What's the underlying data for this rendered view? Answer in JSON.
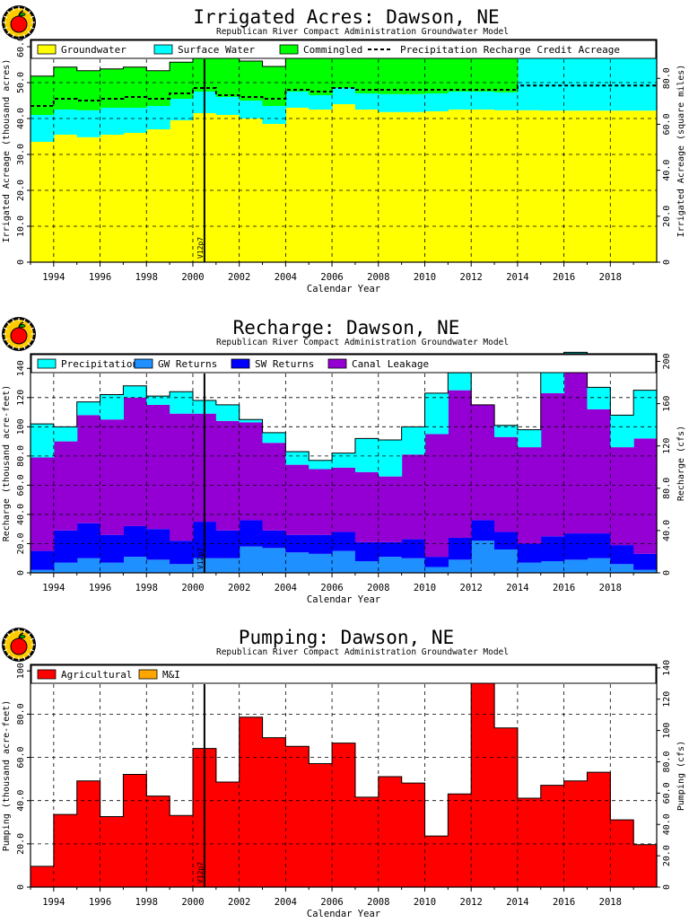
{
  "colors": {
    "groundwater": "#ffff00",
    "surface_water": "#00ffff",
    "commingled": "#00ff00",
    "precipitation": "#00ffff",
    "gw_returns": "#1e90ff",
    "sw_returns": "#0000ff",
    "canal_leakage": "#9400d3",
    "agricultural": "#ff0000",
    "mi": "#ffa500",
    "logo_ring": "#000000",
    "logo_apple": "#ff0000",
    "logo_bg": "#ffcc00"
  },
  "icons": {
    "logo": "apple-logo-icon"
  },
  "chart_data": [
    {
      "type": "area",
      "title": "Irrigated Acres: Dawson, NE",
      "subtitle": "Republican River Compact Administration Groundwater Model",
      "xlabel": "Calendar Year",
      "ylabel": "Irrigated Acreage (thousand acres)",
      "ylabel_right": "Irrigated Acreage (square miles)",
      "xlim": [
        1993,
        2020
      ],
      "ylim": [
        0,
        62
      ],
      "ylim_right": [
        0,
        96.9
      ],
      "yticks": [
        0,
        10,
        20,
        30,
        40,
        50,
        60
      ],
      "ytick_labels": [
        "0",
        "10.0",
        "20.0",
        "30.0",
        "40.0",
        "50.0",
        "60.0"
      ],
      "yticks_right": [
        0,
        20,
        40,
        60,
        80
      ],
      "ytick_labels_right": [
        "0",
        "20.0",
        "40.0",
        "60.0",
        "80.0"
      ],
      "xticks": [
        1994,
        1996,
        1998,
        2000,
        2002,
        2004,
        2006,
        2008,
        2010,
        2012,
        2014,
        2016,
        2018
      ],
      "grid": true,
      "legend_position": "top",
      "vline": {
        "x": 2000.5,
        "label": "V12p7"
      },
      "years": [
        1993,
        1994,
        1995,
        1996,
        1997,
        1998,
        1999,
        2000,
        2001,
        2002,
        2003,
        2004,
        2005,
        2006,
        2007,
        2008,
        2009,
        2010,
        2011,
        2012,
        2013,
        2014,
        2015,
        2016,
        2017,
        2018,
        2019
      ],
      "series": [
        {
          "name": "Groundwater",
          "color_key": "groundwater",
          "values": [
            33.5,
            35.5,
            34.8,
            35.5,
            36.0,
            37.0,
            39.5,
            41.5,
            41.0,
            40.0,
            38.5,
            43.0,
            42.5,
            44.0,
            42.5,
            41.8,
            41.8,
            42.0,
            42.5,
            42.5,
            42.3,
            42.3,
            42.2,
            42.2,
            42.2,
            42.2,
            42.2
          ]
        },
        {
          "name": "Surface Water",
          "color_key": "surface_water",
          "values": [
            7.5,
            7.0,
            7.5,
            7.5,
            7.0,
            6.5,
            6.0,
            6.0,
            5.0,
            5.0,
            5.0,
            4.5,
            4.0,
            4.5,
            4.5,
            5.0,
            5.0,
            5.0,
            5.0,
            5.0,
            5.0,
            16.5,
            16.6,
            16.6,
            16.6,
            16.6,
            16.6
          ]
        },
        {
          "name": "Commingled",
          "color_key": "commingled",
          "values": [
            10.8,
            11.8,
            11.0,
            10.8,
            11.3,
            9.8,
            10.2,
            10.5,
            11.5,
            11.0,
            11.0,
            12.5,
            13.0,
            12.5,
            12.8,
            12.9,
            13.2,
            13.0,
            12.5,
            12.5,
            12.7,
            0,
            0,
            0,
            0,
            0,
            0
          ]
        }
      ],
      "recharge_credit": {
        "name": "Precipitation Recharge Credit Acreage",
        "values": [
          43.5,
          45.5,
          45.0,
          45.5,
          46.0,
          45.5,
          47.0,
          48.5,
          46.5,
          46.0,
          45.5,
          48.0,
          47.5,
          48.5,
          48.0,
          48.0,
          48.0,
          48.0,
          48.0,
          48.0,
          48.0,
          49.2,
          49.2,
          49.2,
          49.2,
          49.2,
          49.2
        ]
      }
    },
    {
      "type": "area",
      "title": "Recharge: Dawson, NE",
      "subtitle": "Republican River Compact Administration Groundwater Model",
      "xlabel": "Calendar Year",
      "ylabel": "Recharge (thousand acre-feet)",
      "ylabel_right": "Recharge (cfs)",
      "xlim": [
        1993,
        2020
      ],
      "ylim": [
        0,
        150
      ],
      "ylim_right": [
        0,
        207.2
      ],
      "yticks": [
        0,
        20,
        40,
        60,
        80,
        100,
        120,
        140
      ],
      "ytick_labels": [
        "0",
        "20.0",
        "40.0",
        "60.0",
        "80.0",
        "100",
        "120",
        "140"
      ],
      "yticks_right": [
        0,
        40,
        80,
        120,
        160,
        200
      ],
      "ytick_labels_right": [
        "0",
        "40.0",
        "80.0",
        "120",
        "160",
        "200"
      ],
      "xticks": [
        1994,
        1996,
        1998,
        2000,
        2002,
        2004,
        2006,
        2008,
        2010,
        2012,
        2014,
        2016,
        2018
      ],
      "grid": true,
      "legend_position": "top",
      "vline": {
        "x": 2000.5,
        "label": "V12p7"
      },
      "years": [
        1993,
        1994,
        1995,
        1996,
        1997,
        1998,
        1999,
        2000,
        2001,
        2002,
        2003,
        2004,
        2005,
        2006,
        2007,
        2008,
        2009,
        2010,
        2011,
        2012,
        2013,
        2014,
        2015,
        2016,
        2017,
        2018,
        2019
      ],
      "series": [
        {
          "name": "GW Returns",
          "color_key": "gw_returns",
          "values": [
            2,
            7,
            10,
            7,
            11,
            9,
            6,
            10,
            10,
            18,
            17,
            14,
            13,
            15,
            8,
            11,
            10,
            4,
            9,
            22,
            16,
            7,
            8,
            9,
            10,
            6,
            2
          ]
        },
        {
          "name": "SW Returns",
          "color_key": "sw_returns",
          "values": [
            13,
            22,
            24,
            19,
            21,
            21,
            16,
            25,
            19,
            18,
            12,
            12,
            13,
            13,
            13,
            10,
            13,
            7,
            15,
            14,
            12,
            13,
            17,
            18,
            17,
            13,
            11
          ]
        },
        {
          "name": "Canal Leakage",
          "color_key": "canal_leakage",
          "values": [
            64,
            61,
            74,
            79,
            88,
            85,
            87,
            74,
            75,
            67,
            60,
            48,
            45,
            44,
            48,
            45,
            58,
            84,
            101,
            79,
            65,
            66,
            98,
            110,
            85,
            67,
            79
          ]
        },
        {
          "name": "Precipitation",
          "color_key": "precipitation",
          "values": [
            23,
            10,
            9,
            17,
            8,
            6,
            15,
            9,
            11,
            2,
            7,
            9,
            6,
            10,
            23,
            25,
            19,
            28,
            12,
            0,
            8,
            12,
            16,
            14,
            15,
            22,
            33
          ]
        }
      ]
    },
    {
      "type": "area",
      "title": "Pumping: Dawson, NE",
      "subtitle": "Republican River Compact Administration Groundwater Model",
      "xlabel": "Calendar Year",
      "ylabel": "Pumping (thousand acre-feet)",
      "ylabel_right": "Pumping (cfs)",
      "xlim": [
        1993,
        2020
      ],
      "ylim": [
        0,
        103
      ],
      "ylim_right": [
        0,
        142.2
      ],
      "yticks": [
        0,
        20,
        40,
        60,
        80,
        100
      ],
      "ytick_labels": [
        "0",
        "20.0",
        "40.0",
        "60.0",
        "80.0",
        "100"
      ],
      "yticks_right": [
        0,
        20,
        40,
        60,
        80,
        100,
        120,
        140
      ],
      "ytick_labels_right": [
        "0",
        "20.0",
        "40.0",
        "60.0",
        "80.0",
        "100",
        "120",
        "140"
      ],
      "xticks": [
        1994,
        1996,
        1998,
        2000,
        2002,
        2004,
        2006,
        2008,
        2010,
        2012,
        2014,
        2016,
        2018
      ],
      "grid": true,
      "legend_position": "top",
      "vline": {
        "x": 2000.5,
        "label": "V12p7"
      },
      "years": [
        1993,
        1994,
        1995,
        1996,
        1997,
        1998,
        1999,
        2000,
        2001,
        2002,
        2003,
        2004,
        2005,
        2006,
        2007,
        2008,
        2009,
        2010,
        2011,
        2012,
        2013,
        2014,
        2015,
        2016,
        2017,
        2018,
        2019
      ],
      "series": [
        {
          "name": "Agricultural",
          "color_key": "agricultural",
          "values": [
            9.5,
            33.5,
            49,
            32.5,
            52,
            42,
            33,
            64,
            48.5,
            78.5,
            69,
            65,
            57,
            66.5,
            41.5,
            51,
            48,
            23.5,
            43,
            101,
            73.5,
            41,
            47,
            49,
            53,
            31,
            19.5
          ]
        },
        {
          "name": "M&I",
          "color_key": "mi",
          "values": [
            0.1,
            0.1,
            0.1,
            0.1,
            0.1,
            0.1,
            0.1,
            0.1,
            0.1,
            0.1,
            0.1,
            0.1,
            0.1,
            0.1,
            0.1,
            0.1,
            0.1,
            0.1,
            0.1,
            0.1,
            0.1,
            0.1,
            0.1,
            0.1,
            0.1,
            0.1,
            0.1
          ]
        }
      ]
    }
  ]
}
